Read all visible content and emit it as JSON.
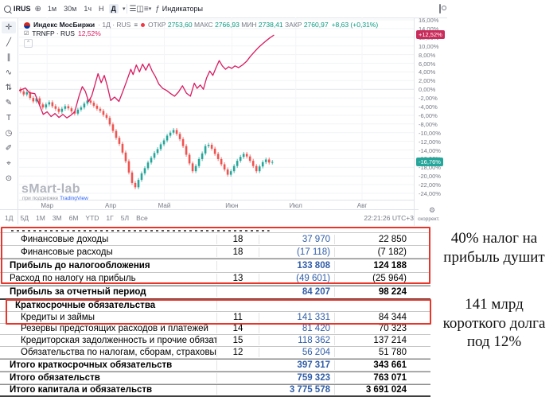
{
  "colors": {
    "red_box": "#e8352a",
    "compare_line": "#d81b60",
    "candle_up": "#26a69a",
    "candle_down": "#ef5350",
    "value_blue": "#2f5da8",
    "badge_line_bg": "#c92b5b",
    "badge_candle_bg": "#26a69a",
    "tv_blue": "#2962ff",
    "axis_text": "#787b86"
  },
  "topbar": {
    "symbol": "IRUS",
    "intervals": [
      "1м",
      "30м",
      "1ч",
      "Н",
      "Д"
    ],
    "active_interval": "Д",
    "indicators_label": "Индикаторы"
  },
  "sidebar_tools": [
    "crosshair",
    "trend-line",
    "channel",
    "pattern",
    "long-short",
    "brush",
    "text",
    "circle",
    "pencil",
    "measure",
    "magnet"
  ],
  "sidebar_glyphs": {
    "crosshair": "✛",
    "trend-line": "╱",
    "channel": "∥",
    "pattern": "∿",
    "long-short": "⇅",
    "brush": "✎",
    "text": "T",
    "circle": "◷",
    "pencil": "✐",
    "measure": "⌖",
    "magnet": "⊙"
  },
  "legend": {
    "line1": {
      "symbol": "Индекс МосБиржи",
      "interval": "1Д",
      "market": "RUS",
      "o_label": "ОТКР",
      "o": "2753,60",
      "h_label": "МАКС",
      "h": "2766,93",
      "l_label": "МИН",
      "l": "2738,41",
      "c_label": "ЗАКР",
      "c": "2760,97",
      "change": "+8,63 (+0,31%)"
    },
    "line2": {
      "symbol": "TRNFP · RUS",
      "value": "12,52%"
    }
  },
  "watermark": {
    "title": "sMart-lab",
    "sub_prefix": "при поддержке",
    "sub_brand": "TradingView"
  },
  "yaxis": {
    "ticks": [
      "16,00%",
      "14,00%",
      "12,00%",
      "10,00%",
      "8,00%",
      "6,00%",
      "4,00%",
      "2,00%",
      "0,00%",
      "-2,00%",
      "-4,00%",
      "-6,00%",
      "-8,00%",
      "-10,00%",
      "-12,00%",
      "-14,00%",
      "-16,00%",
      "-18,00%",
      "-20,00%",
      "-22,00%",
      "-24,00%"
    ],
    "tick_values": [
      16,
      14,
      12,
      10,
      8,
      6,
      4,
      2,
      0,
      -2,
      -4,
      -6,
      -8,
      -10,
      -12,
      -14,
      -16,
      -18,
      -20,
      -22,
      -24
    ],
    "line_badge": {
      "text": "+12,52%",
      "value": 12.52
    },
    "candle_badge": {
      "text": "-16,76%",
      "value": -16.76
    }
  },
  "xaxis": {
    "months": [
      {
        "label": "Мар",
        "t": 0.071
      },
      {
        "label": "Апр",
        "t": 0.232
      },
      {
        "label": "Май",
        "t": 0.368
      },
      {
        "label": "Июн",
        "t": 0.539
      },
      {
        "label": "Июл",
        "t": 0.701
      },
      {
        "label": "Авг",
        "t": 0.869
      }
    ]
  },
  "tfbar": {
    "items": [
      "1Д",
      "5Д",
      "1М",
      "3М",
      "6М",
      "YTD",
      "1Г",
      "5Л",
      "Все"
    ],
    "clock": "22:21:26 UTC+3",
    "adj_label": "скоррект."
  },
  "chart_data": {
    "type": "mixed-candlestick-line",
    "title": "Индекс МосБиржи (свечи, %) против TRNFP (линия, %)",
    "ylim": [
      -24,
      16
    ],
    "grid": true,
    "data_extent_t": 0.646,
    "candle_series": {
      "name": "Индекс МосБиржи",
      "unit": "%",
      "wick": 0.45,
      "closes": [
        -0.5,
        -1.2,
        -0.7,
        -2.0,
        -2.8,
        -2.1,
        -3.5,
        -4.2,
        -3.5,
        -3.0,
        -3.9,
        -4.5,
        -5.2,
        -4.5,
        -3.9,
        -4.4,
        -5.1,
        -5.6,
        -4.7,
        -4.2,
        -3.3,
        -2.6,
        -3.1,
        -3.8,
        -4.5,
        -5.0,
        -5.9,
        -6.6,
        -8.1,
        -9.6,
        -11.2,
        -12.6,
        -14.6,
        -16.6,
        -19.2,
        -21.6,
        -22.6,
        -20.9,
        -19.4,
        -18.2,
        -16.9,
        -15.8,
        -14.7,
        -13.8,
        -12.7,
        -11.8,
        -10.7,
        -10.0,
        -9.4,
        -10.3,
        -11.5,
        -13.1,
        -15.1,
        -17.1,
        -18.9,
        -17.7,
        -16.1,
        -14.8,
        -13.1,
        -12.8,
        -13.7,
        -14.9,
        -16.1,
        -17.3,
        -18.5,
        -19.7,
        -18.9,
        -17.7,
        -16.5,
        -15.6,
        -14.9,
        -15.5,
        -16.5,
        -17.7,
        -18.9,
        -17.8,
        -16.8,
        -16.2,
        -16.9,
        -16.76
      ],
      "last_value": -16.76
    },
    "line_series": {
      "name": "TRNFP",
      "unit": "%",
      "last_value": 12.52,
      "points": [
        [
          0.0,
          -0.3
        ],
        [
          1.6,
          0.3
        ],
        [
          2.6,
          -0.8
        ],
        [
          4.0,
          -1.0
        ],
        [
          5.1,
          -3.5
        ],
        [
          6.1,
          -5.8
        ],
        [
          7.1,
          -5.2
        ],
        [
          8.1,
          -6.3
        ],
        [
          9.1,
          -5.6
        ],
        [
          10.1,
          -6.5
        ],
        [
          11.1,
          -5.8
        ],
        [
          12.1,
          -6.6
        ],
        [
          13.1,
          -6.0
        ],
        [
          14.1,
          -5.2
        ],
        [
          15.2,
          -1.5
        ],
        [
          16.0,
          0.6
        ],
        [
          16.8,
          -0.5
        ],
        [
          17.6,
          -2.8
        ],
        [
          18.4,
          -1.5
        ],
        [
          19.2,
          1.0
        ],
        [
          20.0,
          3.6
        ],
        [
          20.8,
          1.5
        ],
        [
          21.6,
          3.2
        ],
        [
          22.4,
          0.6
        ],
        [
          23.2,
          -2.6
        ],
        [
          24.2,
          -1.8
        ],
        [
          25.3,
          -2.8
        ],
        [
          26.3,
          -0.5
        ],
        [
          27.3,
          2.0
        ],
        [
          28.3,
          4.6
        ],
        [
          28.9,
          3.4
        ],
        [
          29.7,
          5.6
        ],
        [
          30.5,
          4.0
        ],
        [
          31.3,
          5.8
        ],
        [
          32.1,
          4.4
        ],
        [
          32.9,
          5.9
        ],
        [
          33.7,
          4.2
        ],
        [
          34.5,
          3.0
        ],
        [
          35.4,
          1.2
        ],
        [
          36.4,
          0.2
        ],
        [
          37.4,
          -0.3
        ],
        [
          38.4,
          -1.0
        ],
        [
          39.4,
          -1.6
        ],
        [
          40.4,
          -0.6
        ],
        [
          41.4,
          0.8
        ],
        [
          42.4,
          -0.9
        ],
        [
          43.4,
          -1.6
        ],
        [
          44.4,
          1.4
        ],
        [
          45.1,
          0.2
        ],
        [
          45.9,
          1.0
        ],
        [
          46.7,
          0.0
        ],
        [
          47.5,
          2.6
        ],
        [
          48.3,
          4.2
        ],
        [
          49.1,
          3.2
        ],
        [
          49.9,
          5.0
        ],
        [
          50.7,
          6.6
        ],
        [
          51.5,
          5.4
        ],
        [
          52.3,
          4.6
        ],
        [
          53.1,
          5.2
        ],
        [
          53.9,
          4.8
        ],
        [
          54.7,
          5.4
        ],
        [
          55.6,
          5.0
        ],
        [
          56.6,
          5.6
        ],
        [
          57.6,
          6.4
        ],
        [
          58.6,
          7.6
        ],
        [
          59.6,
          8.6
        ],
        [
          60.6,
          9.6
        ],
        [
          61.6,
          10.4
        ],
        [
          62.6,
          11.2
        ],
        [
          63.6,
          11.9
        ],
        [
          64.6,
          12.52
        ]
      ]
    }
  },
  "table": {
    "sections": [
      {
        "id": "pnl",
        "rows": [
          {
            "label": "",
            "note": "",
            "v1": "",
            "v2": "",
            "style": "clipped"
          },
          {
            "label": "Финансовые доходы",
            "note": "18",
            "v1": "37 970",
            "v2": "22 850",
            "style": "item"
          },
          {
            "label": "Финансовые расходы",
            "note": "18",
            "v1": "(17 118)",
            "v2": "(7 182)",
            "style": "item"
          },
          {
            "label": "Прибыль до налогообложения",
            "note": "",
            "v1": "133 808",
            "v2": "124 188",
            "style": "total topline"
          },
          {
            "label": "Расход по налогу на прибыль",
            "note": "13",
            "v1": "(49 601)",
            "v2": "(25 964)",
            "style": "flush"
          },
          {
            "label": "Прибыль за отчетный период",
            "note": "",
            "v1": "84 207",
            "v2": "98 224",
            "style": "total topline dark"
          }
        ]
      },
      {
        "id": "liabilities",
        "rows": [
          {
            "label": "Краткосрочные обязательства",
            "note": "",
            "v1": "",
            "v2": "",
            "style": "header"
          },
          {
            "label": "Кредиты и займы",
            "note": "11",
            "v1": "141 331",
            "v2": "84 344",
            "style": "item"
          },
          {
            "label": "Резервы предстоящих расходов и платежей",
            "note": "14",
            "v1": "81 420",
            "v2": "70 323",
            "style": "item"
          },
          {
            "label": "Кредиторская задолженность и прочие обязательства",
            "note": "15",
            "v1": "118 362",
            "v2": "137 214",
            "style": "item"
          },
          {
            "label": "Обязательства по налогам, сборам, страховым взносам",
            "note": "12",
            "v1": "56 204",
            "v2": "51 780",
            "style": "item"
          },
          {
            "label": "Итого краткосрочных обязательств",
            "note": "",
            "v1": "397 317",
            "v2": "343 661",
            "style": "total topline"
          },
          {
            "label": "Итого обязательств",
            "note": "",
            "v1": "759 323",
            "v2": "763 071",
            "style": "total topline"
          },
          {
            "label": "Итого капитала и обязательств",
            "note": "",
            "v1": "3 775 578",
            "v2": "3 691 024",
            "style": "total topline dark"
          }
        ]
      }
    ]
  },
  "annotations": {
    "tax": "40% налог на\nприбыль душит",
    "debt": "141 млрд\nкороткого долга\nпод 12%"
  }
}
